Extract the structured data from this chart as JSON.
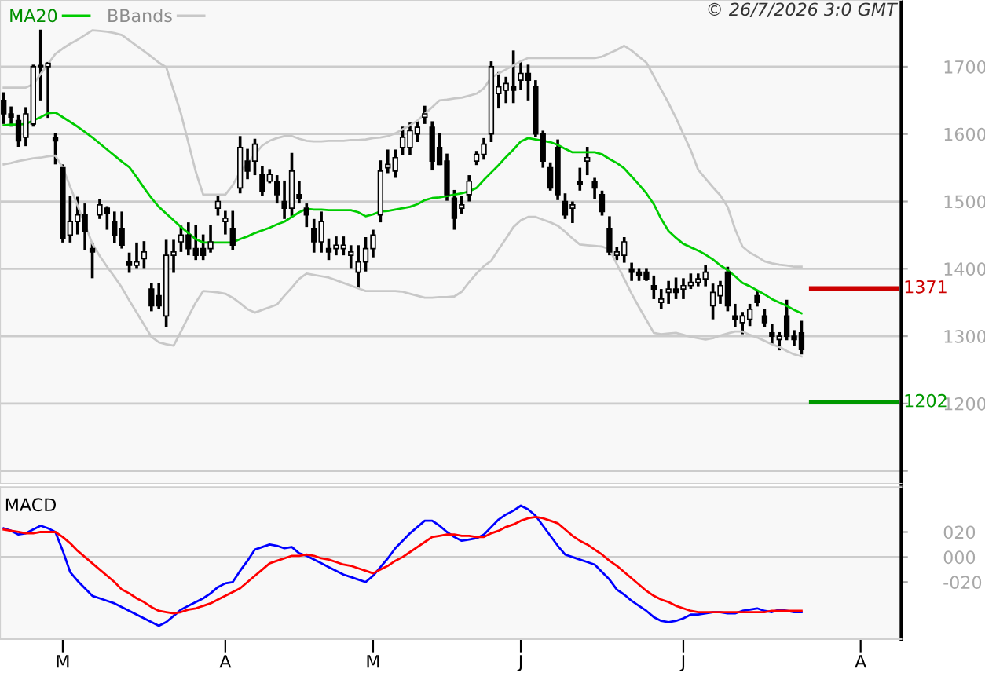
{
  "chart_data": [
    {
      "type": "candlestick",
      "categories": [
        null,
        null,
        null,
        null,
        null,
        null,
        null,
        null,
        null,
        null,
        null,
        null,
        null,
        null,
        null,
        null,
        null,
        null,
        null,
        null,
        null,
        null,
        null,
        null,
        null,
        null,
        null,
        null,
        null,
        null,
        null,
        null,
        null,
        null,
        null,
        null,
        null,
        null,
        null,
        null,
        null,
        null,
        null,
        null,
        null,
        null,
        null,
        null,
        null,
        null,
        null,
        null,
        null,
        null,
        null,
        null,
        null,
        null,
        null,
        null,
        null,
        null,
        null,
        null,
        null,
        null,
        null,
        null,
        null,
        null,
        null,
        null,
        null,
        null,
        null,
        null,
        null,
        null,
        null,
        null,
        null,
        null,
        null,
        null,
        null,
        null,
        null,
        null,
        null,
        null,
        null,
        null,
        null,
        null,
        null,
        null,
        null,
        null,
        null,
        null,
        null,
        null,
        null,
        null,
        null,
        null,
        null,
        null,
        null,
        null,
        null,
        null,
        null,
        null,
        null,
        null,
        null,
        null,
        null,
        null,
        null,
        null
      ],
      "ohlc": [
        [
          1650,
          1662,
          1615,
          1630
        ],
        [
          1630,
          1641,
          1611,
          1625
        ],
        [
          1620,
          1629,
          1581,
          1590
        ],
        [
          1595,
          1640,
          1582,
          1630
        ],
        [
          1615,
          1703,
          1611,
          1700
        ],
        [
          1700,
          1755,
          1650,
          1702
        ],
        [
          1700,
          1707,
          1624,
          1705
        ],
        [
          1595,
          1601,
          1555,
          1590
        ],
        [
          1550,
          1555,
          1439,
          1445
        ],
        [
          1450,
          1508,
          1439,
          1470
        ],
        [
          1470,
          1507,
          1451,
          1480
        ],
        [
          1480,
          1497,
          1428,
          1455
        ],
        [
          1430,
          1439,
          1386,
          1425
        ],
        [
          1480,
          1504,
          1474,
          1495
        ],
        [
          1490,
          1493,
          1458,
          1482
        ],
        [
          1470,
          1485,
          1438,
          1450
        ],
        [
          1460,
          1485,
          1430,
          1435
        ],
        [
          1410,
          1424,
          1394,
          1405
        ],
        [
          1405,
          1439,
          1401,
          1410
        ],
        [
          1415,
          1441,
          1401,
          1425
        ],
        [
          1370,
          1379,
          1337,
          1345
        ],
        [
          1360,
          1379,
          1340,
          1345
        ],
        [
          1330,
          1443,
          1313,
          1420
        ],
        [
          1420,
          1443,
          1394,
          1425
        ],
        [
          1440,
          1464,
          1425,
          1450
        ],
        [
          1450,
          1469,
          1420,
          1430
        ],
        [
          1430,
          1465,
          1413,
          1420
        ],
        [
          1430,
          1451,
          1413,
          1420
        ],
        [
          1430,
          1465,
          1424,
          1440
        ],
        [
          1490,
          1510,
          1479,
          1500
        ],
        [
          1470,
          1486,
          1451,
          1475
        ],
        [
          1460,
          1486,
          1428,
          1435
        ],
        [
          1520,
          1597,
          1512,
          1580
        ],
        [
          1560,
          1578,
          1533,
          1545
        ],
        [
          1560,
          1593,
          1539,
          1585
        ],
        [
          1540,
          1552,
          1508,
          1515
        ],
        [
          1530,
          1548,
          1527,
          1540
        ],
        [
          1530,
          1539,
          1497,
          1510
        ],
        [
          1500,
          1531,
          1474,
          1490
        ],
        [
          1490,
          1572,
          1478,
          1545
        ],
        [
          1510,
          1530,
          1497,
          1505
        ],
        [
          1490,
          1497,
          1462,
          1480
        ],
        [
          1460,
          1474,
          1424,
          1440
        ],
        [
          1440,
          1485,
          1424,
          1470
        ],
        [
          1430,
          1445,
          1413,
          1425
        ],
        [
          1430,
          1448,
          1420,
          1435
        ],
        [
          1430,
          1448,
          1420,
          1435
        ],
        [
          1420,
          1435,
          1401,
          1425
        ],
        [
          1395,
          1435,
          1371,
          1410
        ],
        [
          1410,
          1447,
          1396,
          1430
        ],
        [
          1430,
          1458,
          1417,
          1450
        ],
        [
          1480,
          1561,
          1469,
          1545
        ],
        [
          1550,
          1577,
          1542,
          1555
        ],
        [
          1545,
          1577,
          1535,
          1565
        ],
        [
          1580,
          1611,
          1569,
          1595
        ],
        [
          1580,
          1617,
          1569,
          1605
        ],
        [
          1600,
          1619,
          1588,
          1610
        ],
        [
          1625,
          1642,
          1615,
          1630
        ],
        [
          1610,
          1619,
          1546,
          1560
        ],
        [
          1580,
          1601,
          1554,
          1555
        ],
        [
          1560,
          1571,
          1501,
          1510
        ],
        [
          1505,
          1517,
          1458,
          1475
        ],
        [
          1490,
          1508,
          1482,
          1495
        ],
        [
          1510,
          1539,
          1500,
          1530
        ],
        [
          1560,
          1575,
          1554,
          1570
        ],
        [
          1570,
          1594,
          1562,
          1585
        ],
        [
          1600,
          1708,
          1588,
          1700
        ],
        [
          1660,
          1692,
          1638,
          1670
        ],
        [
          1665,
          1685,
          1646,
          1675
        ],
        [
          1670,
          1724,
          1646,
          1665
        ],
        [
          1680,
          1707,
          1665,
          1690
        ],
        [
          1690,
          1703,
          1650,
          1680
        ],
        [
          1670,
          1680,
          1596,
          1600
        ],
        [
          1600,
          1605,
          1550,
          1560
        ],
        [
          1550,
          1558,
          1516,
          1520
        ],
        [
          1580,
          1592,
          1502,
          1510
        ],
        [
          1500,
          1512,
          1474,
          1480
        ],
        [
          1490,
          1500,
          1468,
          1495
        ],
        [
          1530,
          1550,
          1516,
          1525
        ],
        [
          1560,
          1581,
          1539,
          1565
        ],
        [
          1530,
          1535,
          1504,
          1520
        ],
        [
          1510,
          1516,
          1479,
          1485
        ],
        [
          1460,
          1478,
          1420,
          1425
        ],
        [
          1420,
          1433,
          1413,
          1425
        ],
        [
          1420,
          1447,
          1409,
          1440
        ],
        [
          1400,
          1409,
          1382,
          1395
        ],
        [
          1395,
          1401,
          1382,
          1390
        ],
        [
          1395,
          1401,
          1382,
          1385
        ],
        [
          1375,
          1390,
          1355,
          1370
        ],
        [
          1350,
          1370,
          1340,
          1355
        ],
        [
          1365,
          1382,
          1348,
          1370
        ],
        [
          1370,
          1387,
          1355,
          1365
        ],
        [
          1370,
          1386,
          1355,
          1375
        ],
        [
          1375,
          1393,
          1370,
          1380
        ],
        [
          1380,
          1393,
          1374,
          1385
        ],
        [
          1385,
          1405,
          1374,
          1395
        ],
        [
          1345,
          1378,
          1325,
          1365
        ],
        [
          1360,
          1382,
          1348,
          1375
        ],
        [
          1395,
          1403,
          1337,
          1345
        ],
        [
          1330,
          1348,
          1313,
          1325
        ],
        [
          1320,
          1336,
          1303,
          1330
        ],
        [
          1325,
          1348,
          1315,
          1340
        ],
        [
          1360,
          1367,
          1344,
          1350
        ],
        [
          1330,
          1340,
          1313,
          1320
        ],
        [
          1305,
          1318,
          1288,
          1300
        ],
        [
          1295,
          1306,
          1279,
          1300
        ],
        [
          1330,
          1354,
          1294,
          1300
        ],
        [
          1300,
          1309,
          1285,
          1295
        ],
        [
          1305,
          1323,
          1273,
          1280
        ],
        null,
        null,
        null,
        null,
        null,
        null,
        null,
        null,
        null,
        null,
        null,
        null,
        null
      ],
      "color": "#000000",
      "series": [
        {
          "type": "line",
          "name": "MA20",
          "color": "#00cc00",
          "values": [
            1613,
            1614,
            1614,
            1615,
            1620,
            1625,
            1631,
            1632,
            1625,
            1618,
            1611,
            1603,
            1595,
            1586,
            1577,
            1568,
            1559,
            1551,
            1536,
            1520,
            1505,
            1492,
            1482,
            1472,
            1462,
            1453,
            1444,
            1439,
            1439,
            1439,
            1439,
            1439,
            1444,
            1448,
            1453,
            1457,
            1461,
            1466,
            1470,
            1477,
            1484,
            1489,
            1488,
            1488,
            1487,
            1487,
            1487,
            1487,
            1484,
            1478,
            1481,
            1485,
            1486,
            1488,
            1490,
            1492,
            1496,
            1502,
            1505,
            1506,
            1508,
            1510,
            1512,
            1515,
            1520,
            1532,
            1543,
            1554,
            1566,
            1577,
            1589,
            1594,
            1592,
            1590,
            1588,
            1584,
            1578,
            1573,
            1573,
            1573,
            1573,
            1570,
            1563,
            1557,
            1549,
            1537,
            1525,
            1512,
            1496,
            1474,
            1456,
            1446,
            1437,
            1432,
            1427,
            1421,
            1414,
            1405,
            1398,
            1389,
            1379,
            1374,
            1368,
            1362,
            1355,
            1350,
            1345,
            1339,
            1334,
            null,
            null,
            null,
            null,
            null,
            null,
            null,
            null,
            null,
            null,
            null,
            null,
            null
          ]
        },
        {
          "type": "line",
          "name": "BBands",
          "color": "#c8c8c8",
          "values": [
            1669,
            1669,
            1669,
            1669,
            1674,
            1689,
            1704,
            1719,
            1727,
            1734,
            1740,
            1747,
            1754,
            1753,
            1752,
            1750,
            1747,
            1739,
            1731,
            1723,
            1715,
            1706,
            1699,
            1665,
            1630,
            1587,
            1544,
            1510,
            1510,
            1510,
            1510,
            1524,
            1544,
            1556,
            1570,
            1583,
            1590,
            1594,
            1597,
            1597,
            1593,
            1590,
            1589,
            1589,
            1590,
            1590,
            1590,
            1591,
            1591,
            1592,
            1594,
            1595,
            1597,
            1601,
            1607,
            1613,
            1620,
            1630,
            1640,
            1650,
            1651,
            1653,
            1654,
            1657,
            1660,
            1668,
            1684,
            1690,
            1696,
            1702,
            1708,
            1713,
            1713,
            1713,
            1713,
            1713,
            1713,
            1713,
            1713,
            1713,
            1713,
            1715,
            1720,
            1725,
            1731,
            1724,
            1715,
            1706,
            1686,
            1666,
            1646,
            1624,
            1600,
            1576,
            1547,
            1534,
            1521,
            1509,
            1492,
            1459,
            1433,
            1424,
            1418,
            1411,
            1408,
            1406,
            1405,
            1403,
            1403,
            null,
            null,
            null,
            null,
            null,
            null,
            null,
            null,
            null,
            null,
            null,
            null,
            null
          ]
        },
        {
          "type": "line",
          "color": "#c8c8c8",
          "values": [
            1555,
            1557,
            1560,
            1562,
            1564,
            1565,
            1567,
            1568,
            1550,
            1522,
            1494,
            1466,
            1437,
            1419,
            1403,
            1388,
            1372,
            1353,
            1335,
            1317,
            1299,
            1291,
            1288,
            1286,
            1307,
            1329,
            1350,
            1367,
            1366,
            1365,
            1363,
            1357,
            1349,
            1340,
            1335,
            1339,
            1343,
            1347,
            1360,
            1372,
            1385,
            1393,
            1391,
            1389,
            1387,
            1383,
            1379,
            1375,
            1371,
            1367,
            1367,
            1367,
            1367,
            1367,
            1366,
            1363,
            1360,
            1357,
            1357,
            1358,
            1358,
            1359,
            1366,
            1380,
            1393,
            1404,
            1412,
            1429,
            1445,
            1462,
            1472,
            1477,
            1477,
            1473,
            1469,
            1464,
            1455,
            1445,
            1436,
            1435,
            1434,
            1433,
            1429,
            1407,
            1385,
            1363,
            1343,
            1324,
            1305,
            1303,
            1304,
            1305,
            1302,
            1299,
            1297,
            1295,
            1297,
            1301,
            1304,
            1307,
            1307,
            1302,
            1298,
            1293,
            1288,
            1284,
            1278,
            1273,
            1270,
            null,
            null,
            null,
            null,
            null,
            null,
            null,
            null,
            null,
            null,
            null,
            null,
            null
          ]
        }
      ],
      "ylim": [
        1081,
        1799
      ],
      "yticks": [
        {
          "value": 1100,
          "label": null
        },
        1200,
        1300,
        1400,
        1500,
        1600,
        1700
      ],
      "tick_labels": "y",
      "grid": "y",
      "legend": "top left",
      "ref_lines": [
        {
          "axis": "y",
          "value": 1371,
          "label": "1371",
          "color": "#cc0000"
        },
        {
          "axis": "y",
          "value": 1202,
          "label": "1202",
          "color": "#009900"
        }
      ],
      "annotations": [
        "© 26/7/2026 3:0 GMT"
      ]
    },
    {
      "type": "line",
      "title": "MACD",
      "categories": [
        null,
        null,
        null,
        null,
        null,
        null,
        null,
        null,
        "M",
        null,
        null,
        null,
        null,
        null,
        null,
        null,
        null,
        null,
        null,
        null,
        null,
        null,
        null,
        null,
        null,
        null,
        null,
        null,
        null,
        null,
        "A",
        null,
        null,
        null,
        null,
        null,
        null,
        null,
        null,
        null,
        null,
        null,
        null,
        null,
        null,
        null,
        null,
        null,
        null,
        null,
        "M",
        null,
        null,
        null,
        null,
        null,
        null,
        null,
        null,
        null,
        null,
        null,
        null,
        null,
        null,
        null,
        null,
        null,
        null,
        null,
        "J",
        null,
        null,
        null,
        null,
        null,
        null,
        null,
        null,
        null,
        null,
        null,
        null,
        null,
        null,
        null,
        null,
        null,
        null,
        null,
        null,
        null,
        "J",
        null,
        null,
        null,
        null,
        null,
        null,
        null,
        null,
        null,
        null,
        null,
        null,
        null,
        null,
        null,
        null,
        null,
        null,
        null,
        null,
        null,
        null,
        null,
        "A",
        null,
        null,
        null,
        null,
        null
      ],
      "series": [
        {
          "color": "#0000ff",
          "values": [
            23,
            21,
            18,
            19,
            22,
            25,
            23,
            20,
            5,
            -12,
            -19,
            -25,
            -31,
            -33,
            -35,
            -37,
            -40,
            -43,
            -46,
            -49,
            -52,
            -55,
            -52,
            -47,
            -42,
            -39,
            -36,
            -33,
            -29,
            -24,
            -21,
            -20,
            -11,
            -3,
            6,
            8,
            10,
            9,
            7,
            8,
            3,
            1,
            -2,
            -5,
            -8,
            -11,
            -14,
            -16,
            -18,
            -20,
            -15,
            -8,
            -1,
            7,
            13,
            19,
            24,
            29,
            29,
            25,
            20,
            16,
            13,
            14,
            15,
            18,
            24,
            30,
            34,
            37,
            41,
            38,
            33,
            25,
            17,
            9,
            2,
            0,
            -2,
            -4,
            -6,
            -12,
            -18,
            -26,
            -30,
            -35,
            -39,
            -43,
            -48,
            -51,
            -52,
            -51,
            -49,
            -46,
            -46,
            -45,
            -44,
            -44,
            -45,
            -45,
            -43,
            -42,
            -41,
            -43,
            -44,
            -42,
            -43,
            -44,
            -44,
            null,
            null,
            null,
            null,
            null,
            null,
            null,
            null,
            null,
            null,
            null,
            null,
            null
          ]
        },
        {
          "color": "#ff0000",
          "values": [
            22,
            21,
            20,
            19,
            19,
            20,
            20,
            20,
            16,
            11,
            5,
            0,
            -5,
            -10,
            -15,
            -20,
            -26,
            -29,
            -33,
            -36,
            -40,
            -43,
            -44,
            -45,
            -44,
            -42,
            -41,
            -39,
            -37,
            -34,
            -31,
            -28,
            -25,
            -20,
            -15,
            -10,
            -5,
            -3,
            -1,
            1,
            1,
            2,
            1,
            -1,
            -2,
            -4,
            -6,
            -7,
            -9,
            -11,
            -13,
            -10,
            -7,
            -3,
            0,
            4,
            8,
            12,
            16,
            17,
            18,
            18,
            17,
            17,
            16,
            16,
            19,
            21,
            24,
            26,
            29,
            31,
            32,
            31,
            29,
            27,
            22,
            17,
            13,
            10,
            6,
            2,
            -3,
            -7,
            -12,
            -17,
            -22,
            -27,
            -31,
            -34,
            -36,
            -39,
            -41,
            -43,
            -44,
            -44,
            -44,
            -44,
            -44,
            -44,
            -44,
            -44,
            -44,
            -44,
            -43,
            -43,
            -43,
            -43,
            -43,
            null,
            null,
            null,
            null,
            null,
            null,
            null,
            null,
            null,
            null,
            null,
            null,
            null
          ]
        }
      ],
      "ylim": [
        -65.6,
        55.8
      ],
      "yticks": [
        {
          "value": 20,
          "label": "020"
        },
        {
          "value": 0,
          "label": "000"
        },
        {
          "value": -20,
          "label": "-020"
        }
      ],
      "ref_lines": [
        {
          "axis": "y",
          "value": 0,
          "color": "#cccccc"
        }
      ]
    }
  ]
}
